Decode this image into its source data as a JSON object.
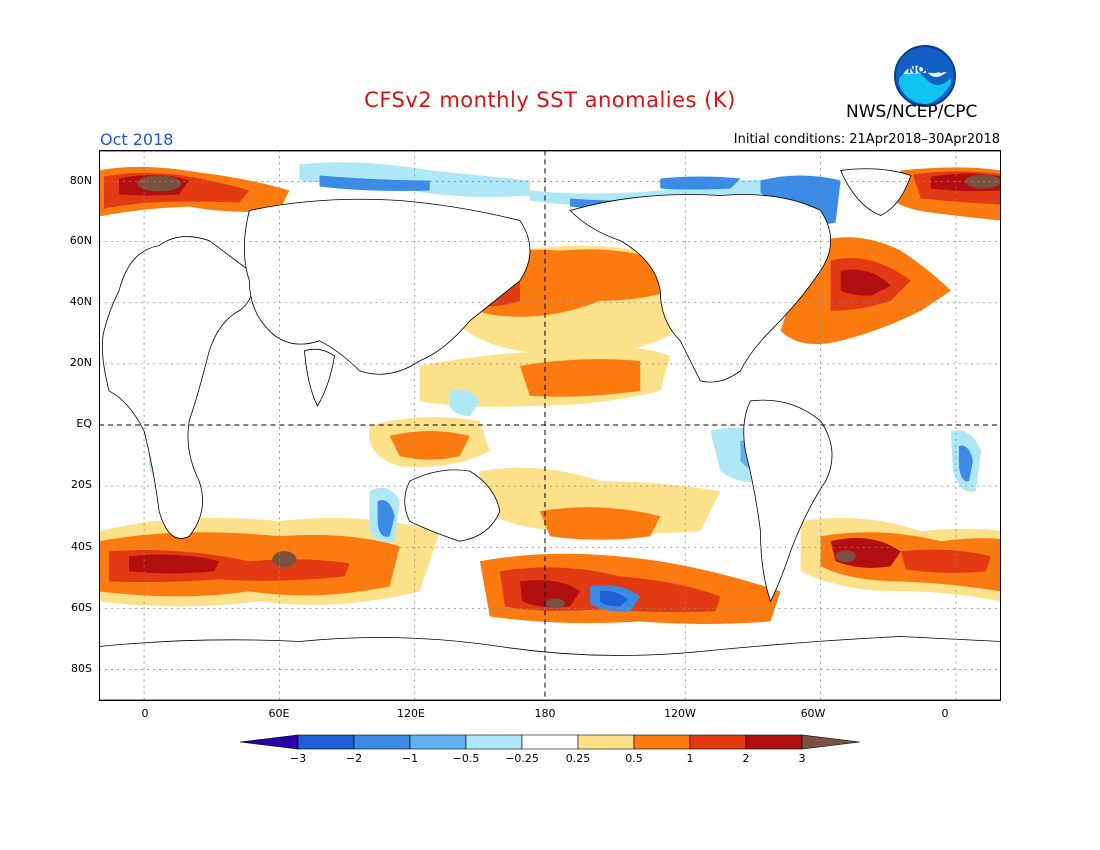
{
  "header": {
    "title": "CFSv2 monthly SST anomalies (K)",
    "agency": "NWS/NCEP/CPC",
    "logo_text": "NOAA",
    "month": "Oct 2018",
    "initial_conditions": "Initial conditions: 21Apr2018–30Apr2018"
  },
  "map": {
    "lat_labels": [
      "80N",
      "60N",
      "40N",
      "20N",
      "EQ",
      "20S",
      "40S",
      "60S",
      "80S"
    ],
    "lon_labels": [
      "0",
      "60E",
      "120E",
      "180",
      "120W",
      "60W",
      "0"
    ],
    "projection": "cylindrical equidistant",
    "lon_range": [
      -20,
      380
    ],
    "lat_range": [
      -90,
      90
    ],
    "gridlines": "dotted",
    "equator_and_dateline": "dashed"
  },
  "colorbar": {
    "labels": [
      "−3",
      "−2",
      "−1",
      "−0.5",
      "−0.25",
      "0.25",
      "0.5",
      "1",
      "2",
      "3"
    ],
    "colors": [
      "#2a00a8",
      "#1f5fd6",
      "#3a8ae6",
      "#62aff0",
      "#aee8f6",
      "#ffffff",
      "#fde08a",
      "#fb7b10",
      "#e23a12",
      "#b21010",
      "#7a5040"
    ]
  }
}
